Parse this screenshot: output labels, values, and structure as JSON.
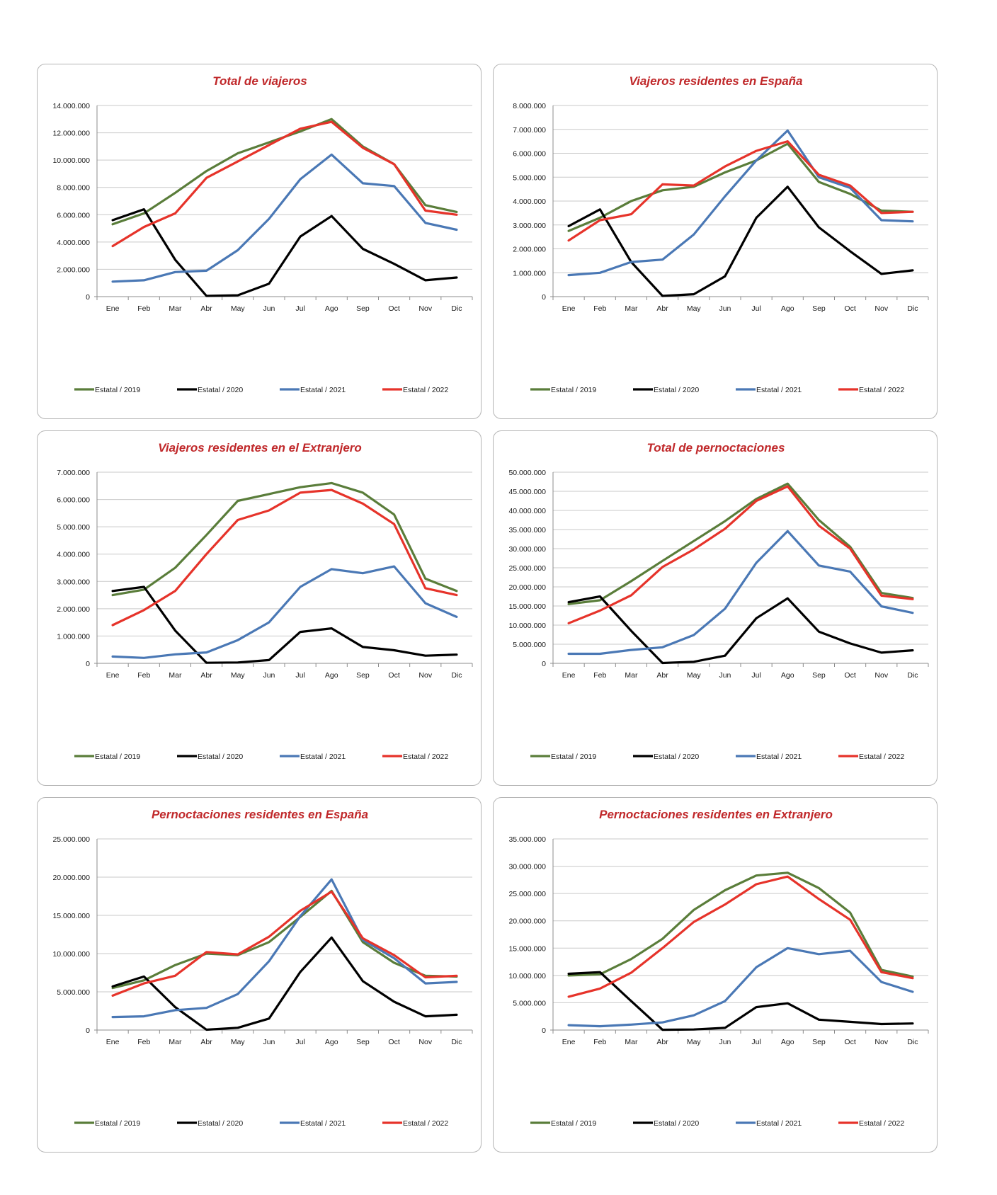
{
  "colors": {
    "title": "#c0282a",
    "s2019": "#5a7d3a",
    "s2020": "#000000",
    "s2021": "#4a78b5",
    "s2022": "#e6332a"
  },
  "chart_data": [
    {
      "type": "line",
      "title": "Total de viajeros",
      "categories": [
        "Ene",
        "Feb",
        "Mar",
        "Abr",
        "May",
        "Jun",
        "Jul",
        "Ago",
        "Sep",
        "Oct",
        "Nov",
        "Dic"
      ],
      "ylim": [
        0,
        14000000
      ],
      "yticks": [
        "0",
        "2.000.000",
        "4.000.000",
        "6.000.000",
        "8.000.000",
        "10.000.000",
        "12.000.000",
        "14.000.000"
      ],
      "legend_position": "bottom",
      "grid": true,
      "series": [
        {
          "name": "Estatal / 2019",
          "color": "#5a7d3a",
          "values": [
            5300000,
            6100000,
            7600000,
            9200000,
            10500000,
            11300000,
            12100000,
            13000000,
            11000000,
            9700000,
            6700000,
            6200000
          ]
        },
        {
          "name": "Estatal / 2020",
          "color": "#000000",
          "values": [
            5600000,
            6400000,
            2700000,
            50000,
            100000,
            950000,
            4400000,
            5900000,
            3500000,
            2400000,
            1200000,
            1400000
          ]
        },
        {
          "name": "Estatal / 2021",
          "color": "#4a78b5",
          "values": [
            1100000,
            1200000,
            1800000,
            1900000,
            3400000,
            5700000,
            8600000,
            10400000,
            8300000,
            8100000,
            5400000,
            4900000
          ]
        },
        {
          "name": "Estatal / 2022",
          "color": "#e6332a",
          "values": [
            3700000,
            5100000,
            6100000,
            8700000,
            9900000,
            11100000,
            12300000,
            12800000,
            10900000,
            9700000,
            6300000,
            6000000
          ]
        }
      ]
    },
    {
      "type": "line",
      "title": "Viajeros residentes en España",
      "categories": [
        "Ene",
        "Feb",
        "Mar",
        "Abr",
        "May",
        "Jun",
        "Jul",
        "Ago",
        "Sep",
        "Oct",
        "Nov",
        "Dic"
      ],
      "ylim": [
        0,
        8000000
      ],
      "yticks": [
        "0",
        "1.000.000",
        "2.000.000",
        "3.000.000",
        "4.000.000",
        "5.000.000",
        "6.000.000",
        "7.000.000",
        "8.000.000"
      ],
      "legend_position": "bottom",
      "grid": true,
      "series": [
        {
          "name": "Estatal / 2019",
          "color": "#5a7d3a",
          "values": [
            2750000,
            3300000,
            4000000,
            4450000,
            4600000,
            5200000,
            5700000,
            6400000,
            4800000,
            4300000,
            3600000,
            3550000
          ]
        },
        {
          "name": "Estatal / 2020",
          "color": "#000000",
          "values": [
            2950000,
            3650000,
            1450000,
            30000,
            100000,
            850000,
            3300000,
            4600000,
            2900000,
            1900000,
            950000,
            1100000
          ]
        },
        {
          "name": "Estatal / 2021",
          "color": "#4a78b5",
          "values": [
            900000,
            1000000,
            1450000,
            1550000,
            2600000,
            4200000,
            5700000,
            6950000,
            5000000,
            4550000,
            3200000,
            3150000
          ]
        },
        {
          "name": "Estatal / 2022",
          "color": "#e6332a",
          "values": [
            2350000,
            3200000,
            3450000,
            4700000,
            4650000,
            5450000,
            6100000,
            6500000,
            5100000,
            4650000,
            3500000,
            3550000
          ]
        }
      ]
    },
    {
      "type": "line",
      "title": "Viajeros residentes en el Extranjero",
      "categories": [
        "Ene",
        "Feb",
        "Mar",
        "Abr",
        "May",
        "Jun",
        "Jul",
        "Ago",
        "Sep",
        "Oct",
        "Nov",
        "Dic"
      ],
      "ylim": [
        0,
        7000000
      ],
      "yticks": [
        "0",
        "1.000.000",
        "2.000.000",
        "3.000.000",
        "4.000.000",
        "5.000.000",
        "6.000.000",
        "7.000.000"
      ],
      "legend_position": "bottom",
      "grid": true,
      "series": [
        {
          "name": "Estatal / 2019",
          "color": "#5a7d3a",
          "values": [
            2500000,
            2700000,
            3500000,
            4700000,
            5950000,
            6200000,
            6450000,
            6600000,
            6250000,
            5450000,
            3100000,
            2650000
          ]
        },
        {
          "name": "Estatal / 2020",
          "color": "#000000",
          "values": [
            2650000,
            2800000,
            1200000,
            20000,
            30000,
            120000,
            1150000,
            1280000,
            600000,
            480000,
            280000,
            320000
          ]
        },
        {
          "name": "Estatal / 2021",
          "color": "#4a78b5",
          "values": [
            250000,
            200000,
            330000,
            400000,
            850000,
            1500000,
            2800000,
            3450000,
            3300000,
            3550000,
            2200000,
            1700000
          ]
        },
        {
          "name": "Estatal / 2022",
          "color": "#e6332a",
          "values": [
            1400000,
            1950000,
            2650000,
            4000000,
            5250000,
            5600000,
            6250000,
            6350000,
            5850000,
            5100000,
            2750000,
            2500000
          ]
        }
      ]
    },
    {
      "type": "line",
      "title": "Total de pernoctaciones",
      "categories": [
        "Ene",
        "Feb",
        "Mar",
        "Abr",
        "May",
        "Jun",
        "Jul",
        "Ago",
        "Sep",
        "Oct",
        "Nov",
        "Dic"
      ],
      "ylim": [
        0,
        50000000
      ],
      "yticks": [
        "0",
        "5.000.000",
        "10.000.000",
        "15.000.000",
        "20.000.000",
        "25.000.000",
        "30.000.000",
        "35.000.000",
        "40.000.000",
        "45.000.000",
        "50.000.000"
      ],
      "legend_position": "bottom",
      "grid": true,
      "series": [
        {
          "name": "Estatal / 2019",
          "color": "#5a7d3a",
          "values": [
            15500000,
            16500000,
            21500000,
            26800000,
            32000000,
            37200000,
            43000000,
            47000000,
            37500000,
            30500000,
            18400000,
            17100000
          ]
        },
        {
          "name": "Estatal / 2020",
          "color": "#000000",
          "values": [
            16000000,
            17500000,
            8500000,
            100000,
            400000,
            2000000,
            11800000,
            17000000,
            8300000,
            5200000,
            2800000,
            3400000
          ]
        },
        {
          "name": "Estatal / 2021",
          "color": "#4a78b5",
          "values": [
            2500000,
            2500000,
            3500000,
            4200000,
            7400000,
            14300000,
            26300000,
            34600000,
            25600000,
            24000000,
            14900000,
            13200000
          ]
        },
        {
          "name": "Estatal / 2022",
          "color": "#e6332a",
          "values": [
            10500000,
            13800000,
            17800000,
            25200000,
            29800000,
            35200000,
            42500000,
            46300000,
            36000000,
            30000000,
            17700000,
            16800000
          ]
        }
      ]
    },
    {
      "type": "line",
      "title": "Pernoctaciones residentes en España",
      "categories": [
        "Ene",
        "Feb",
        "Mar",
        "Abr",
        "May",
        "Jun",
        "Jul",
        "Ago",
        "Sep",
        "Oct",
        "Nov",
        "Dic"
      ],
      "ylim": [
        0,
        25000000
      ],
      "yticks": [
        "0",
        "5.000.000",
        "10.000.000",
        "15.000.000",
        "20.000.000",
        "25.000.000"
      ],
      "legend_position": "bottom",
      "grid": true,
      "series": [
        {
          "name": "Estatal / 2019",
          "color": "#5a7d3a",
          "values": [
            5500000,
            6500000,
            8500000,
            10000000,
            9800000,
            11500000,
            14800000,
            18200000,
            11500000,
            8800000,
            7100000,
            7000000
          ]
        },
        {
          "name": "Estatal / 2020",
          "color": "#000000",
          "values": [
            5700000,
            7000000,
            3000000,
            50000,
            300000,
            1500000,
            7600000,
            12100000,
            6400000,
            3700000,
            1800000,
            2000000
          ]
        },
        {
          "name": "Estatal / 2021",
          "color": "#4a78b5",
          "values": [
            1700000,
            1800000,
            2600000,
            2900000,
            4700000,
            9000000,
            14900000,
            19700000,
            11800000,
            9400000,
            6100000,
            6300000
          ]
        },
        {
          "name": "Estatal / 2022",
          "color": "#e6332a",
          "values": [
            4500000,
            6100000,
            7100000,
            10200000,
            9900000,
            12200000,
            15600000,
            18100000,
            12000000,
            9800000,
            6900000,
            7100000
          ]
        }
      ]
    },
    {
      "type": "line",
      "title": "Pernoctaciones residentes en Extranjero",
      "categories": [
        "Ene",
        "Feb",
        "Mar",
        "Abr",
        "May",
        "Jun",
        "Jul",
        "Ago",
        "Sep",
        "Oct",
        "Nov",
        "Dic"
      ],
      "ylim": [
        0,
        35000000
      ],
      "yticks": [
        "0",
        "5.000.000",
        "10.000.000",
        "15.000.000",
        "20.000.000",
        "25.000.000",
        "30.000.000",
        "35.000.000"
      ],
      "legend_position": "bottom",
      "grid": true,
      "series": [
        {
          "name": "Estatal / 2019",
          "color": "#5a7d3a",
          "values": [
            10000000,
            10200000,
            13000000,
            16700000,
            22000000,
            25600000,
            28300000,
            28800000,
            26000000,
            21500000,
            11000000,
            9800000
          ]
        },
        {
          "name": "Estatal / 2020",
          "color": "#000000",
          "values": [
            10300000,
            10600000,
            5300000,
            50000,
            100000,
            400000,
            4200000,
            4900000,
            1900000,
            1500000,
            1100000,
            1200000
          ]
        },
        {
          "name": "Estatal / 2021",
          "color": "#4a78b5",
          "values": [
            900000,
            700000,
            1000000,
            1400000,
            2700000,
            5300000,
            11500000,
            15000000,
            13900000,
            14500000,
            8800000,
            7000000
          ]
        },
        {
          "name": "Estatal / 2022",
          "color": "#e6332a",
          "values": [
            6100000,
            7600000,
            10500000,
            15000000,
            19800000,
            23000000,
            26700000,
            28100000,
            24000000,
            20200000,
            10600000,
            9500000
          ]
        }
      ]
    }
  ]
}
